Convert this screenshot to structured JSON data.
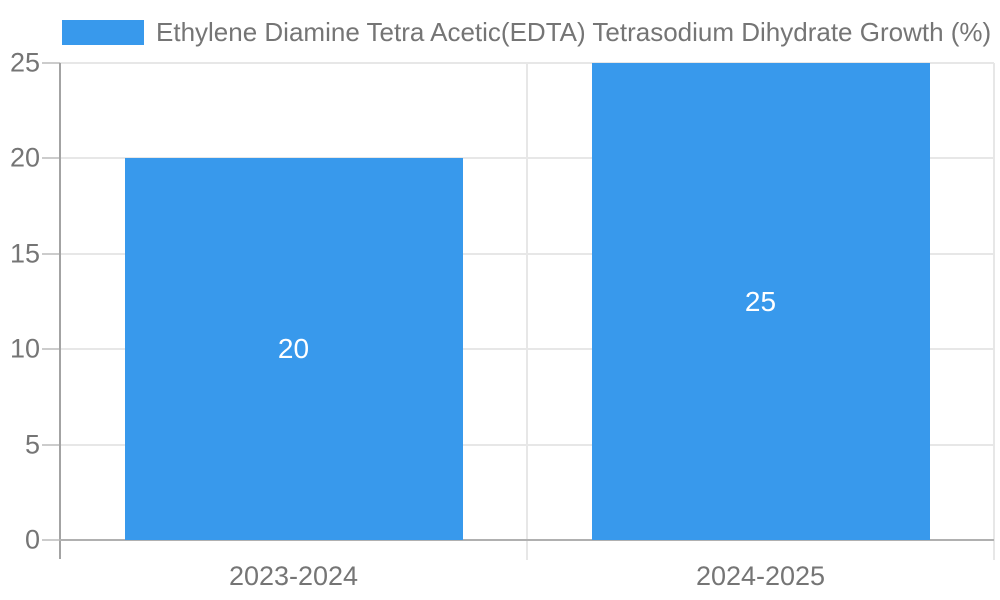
{
  "chart_data": {
    "type": "bar",
    "title": "Ethylene Diamine Tetra Acetic(EDTA) Tetrasodium Dihydrate Growth (%)",
    "categories": [
      "2023-2024",
      "2024-2025"
    ],
    "values": [
      20,
      25
    ],
    "bar_labels": [
      "20",
      "25"
    ],
    "xlabel": "",
    "ylabel": "",
    "ylim": [
      0,
      25
    ],
    "yticks": [
      0,
      5,
      10,
      15,
      20,
      25
    ],
    "grid": true,
    "legend_position": "top",
    "bar_color": "#3899ec",
    "bar_label_color": "#ffffff"
  },
  "colors": {
    "background": "#ffffff",
    "axis_line": "#a3a3a3",
    "baseline": "#b0b0b0",
    "gridline": "#e7e7e7",
    "tick": "#cccccc",
    "label_text": "#757575"
  }
}
